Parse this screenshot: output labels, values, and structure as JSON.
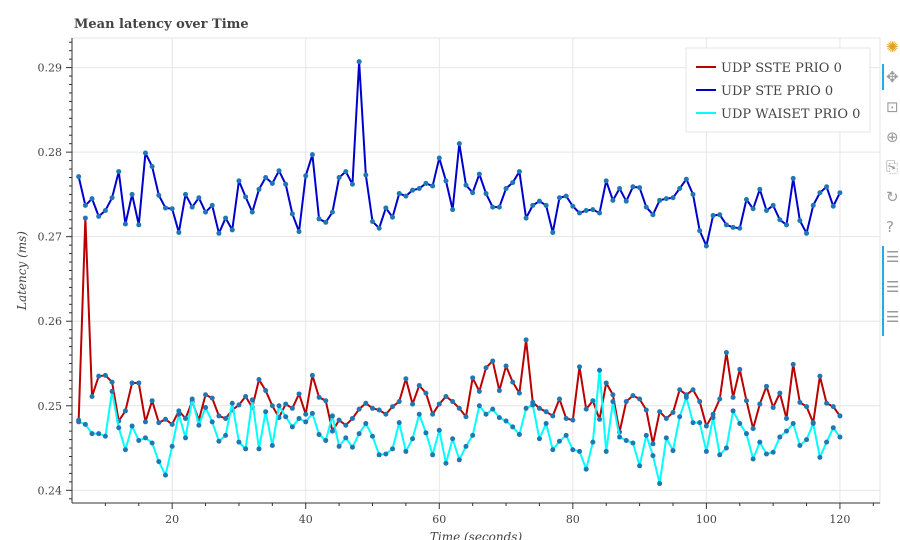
{
  "chart_data": {
    "type": "line",
    "title": "Mean latency over Time",
    "xlabel": "Time (seconds)",
    "ylabel": "Latency (ms)",
    "xlim": [
      5,
      126
    ],
    "ylim": [
      0.2385,
      0.2935
    ],
    "xticks": [
      20,
      40,
      60,
      80,
      100,
      120
    ],
    "yticks": [
      0.24,
      0.25,
      0.26,
      0.27,
      0.28,
      0.29
    ],
    "grid": true,
    "legend_position": "top-right",
    "marker_color": "#1f77b4",
    "x_start": 6,
    "x_step": 1,
    "series": [
      {
        "name": "UDP SSTE PRIO 0",
        "color": "#bb0000",
        "values": [
          0.2483,
          0.2722,
          0.2511,
          0.2535,
          0.2536,
          0.2528,
          0.2482,
          0.2494,
          0.2527,
          0.2527,
          0.2481,
          0.2506,
          0.248,
          0.2484,
          0.2478,
          0.2494,
          0.2485,
          0.2505,
          0.2483,
          0.2513,
          0.2509,
          0.2488,
          0.2485,
          0.2495,
          0.2501,
          0.2511,
          0.2498,
          0.2531,
          0.2518,
          0.25,
          0.2486,
          0.2502,
          0.2497,
          0.2514,
          0.249,
          0.2536,
          0.251,
          0.2506,
          0.247,
          0.2483,
          0.2477,
          0.2485,
          0.2496,
          0.2503,
          0.2497,
          0.2495,
          0.249,
          0.2499,
          0.2505,
          0.2532,
          0.2502,
          0.2524,
          0.2515,
          0.249,
          0.2502,
          0.2511,
          0.2505,
          0.2497,
          0.2487,
          0.2533,
          0.2517,
          0.2545,
          0.2553,
          0.2518,
          0.2547,
          0.2528,
          0.2515,
          0.2578,
          0.2504,
          0.2497,
          0.2493,
          0.2488,
          0.2508,
          0.2485,
          0.2483,
          0.2546,
          0.2496,
          0.2506,
          0.2484,
          0.2527,
          0.2513,
          0.2469,
          0.2505,
          0.2512,
          0.2508,
          0.2495,
          0.2455,
          0.2493,
          0.2485,
          0.2492,
          0.2519,
          0.2513,
          0.2519,
          0.2505,
          0.2476,
          0.249,
          0.2508,
          0.2563,
          0.251,
          0.2543,
          0.2506,
          0.2473,
          0.2502,
          0.2523,
          0.2498,
          0.2515,
          0.2485,
          0.2549,
          0.2504,
          0.2499,
          0.248,
          0.2535,
          0.2503,
          0.2499,
          0.2488
        ]
      },
      {
        "name": "UDP STE PRIO 0",
        "color": "#0000cc",
        "values": [
          0.2771,
          0.2737,
          0.2745,
          0.2724,
          0.2731,
          0.2746,
          0.2777,
          0.2715,
          0.275,
          0.2714,
          0.2799,
          0.2783,
          0.2749,
          0.2734,
          0.2733,
          0.2705,
          0.275,
          0.2735,
          0.2746,
          0.2729,
          0.2737,
          0.2704,
          0.2722,
          0.2708,
          0.2766,
          0.2747,
          0.2729,
          0.2756,
          0.277,
          0.2763,
          0.2778,
          0.2762,
          0.2727,
          0.2706,
          0.2772,
          0.2797,
          0.2721,
          0.2717,
          0.2729,
          0.277,
          0.2777,
          0.2762,
          0.2907,
          0.2773,
          0.2718,
          0.271,
          0.2734,
          0.2723,
          0.2751,
          0.2748,
          0.2755,
          0.2757,
          0.2763,
          0.276,
          0.2793,
          0.2766,
          0.2732,
          0.281,
          0.2761,
          0.2752,
          0.2774,
          0.2751,
          0.2735,
          0.2735,
          0.2757,
          0.2764,
          0.2777,
          0.2722,
          0.2737,
          0.2742,
          0.2737,
          0.2705,
          0.2746,
          0.2748,
          0.2736,
          0.2728,
          0.2731,
          0.2732,
          0.2728,
          0.2766,
          0.2743,
          0.2757,
          0.2742,
          0.2759,
          0.2758,
          0.2735,
          0.2726,
          0.2743,
          0.2745,
          0.2746,
          0.2757,
          0.2768,
          0.275,
          0.2707,
          0.2689,
          0.2725,
          0.2726,
          0.2714,
          0.2711,
          0.271,
          0.2744,
          0.2733,
          0.2756,
          0.2731,
          0.2737,
          0.272,
          0.2714,
          0.2769,
          0.2719,
          0.2704,
          0.2737,
          0.2752,
          0.2759,
          0.2736,
          0.2752
        ]
      },
      {
        "name": "UDP WAISET PRIO 0",
        "color": "#00ffff",
        "values": [
          0.2481,
          0.2478,
          0.2467,
          0.2467,
          0.2464,
          0.2517,
          0.2474,
          0.2448,
          0.2476,
          0.2459,
          0.2462,
          0.2456,
          0.2434,
          0.2418,
          0.2452,
          0.249,
          0.2462,
          0.2508,
          0.2477,
          0.2498,
          0.2481,
          0.2458,
          0.2465,
          0.2503,
          0.2457,
          0.2449,
          0.2507,
          0.2449,
          0.2493,
          0.2453,
          0.25,
          0.2487,
          0.2475,
          0.2485,
          0.2481,
          0.2491,
          0.2466,
          0.2459,
          0.2488,
          0.2452,
          0.2462,
          0.2451,
          0.2467,
          0.2479,
          0.2464,
          0.2442,
          0.2443,
          0.2449,
          0.248,
          0.2446,
          0.2461,
          0.249,
          0.2468,
          0.2442,
          0.2471,
          0.2432,
          0.2461,
          0.2436,
          0.2452,
          0.2465,
          0.25,
          0.249,
          0.2496,
          0.2486,
          0.2482,
          0.2475,
          0.2466,
          0.2497,
          0.2501,
          0.2461,
          0.2479,
          0.2448,
          0.2458,
          0.2465,
          0.2448,
          0.2446,
          0.2425,
          0.2457,
          0.2542,
          0.2446,
          0.2505,
          0.2463,
          0.2459,
          0.2456,
          0.2429,
          0.2465,
          0.2441,
          0.2408,
          0.2462,
          0.2447,
          0.2487,
          0.251,
          0.248,
          0.248,
          0.2446,
          0.2486,
          0.2442,
          0.245,
          0.2494,
          0.2479,
          0.2467,
          0.2437,
          0.2457,
          0.2443,
          0.2445,
          0.2463,
          0.247,
          0.2479,
          0.2453,
          0.246,
          0.2479,
          0.2439,
          0.2457,
          0.2474,
          0.2463
        ]
      }
    ]
  },
  "toolbar": {
    "tools": [
      {
        "name": "bokeh-logo-icon",
        "glyph": "✺"
      },
      {
        "name": "pan-icon",
        "glyph": "✥"
      },
      {
        "name": "box-zoom-icon",
        "glyph": "⊡"
      },
      {
        "name": "wheel-zoom-icon",
        "glyph": "⊕"
      },
      {
        "name": "save-icon",
        "glyph": "⎘"
      },
      {
        "name": "reset-icon",
        "glyph": "↻"
      },
      {
        "name": "help-icon",
        "glyph": "?"
      },
      {
        "name": "hover-icon-1",
        "glyph": "☰"
      },
      {
        "name": "hover-icon-2",
        "glyph": "☰"
      },
      {
        "name": "hover-icon-3",
        "glyph": "☰"
      }
    ]
  }
}
